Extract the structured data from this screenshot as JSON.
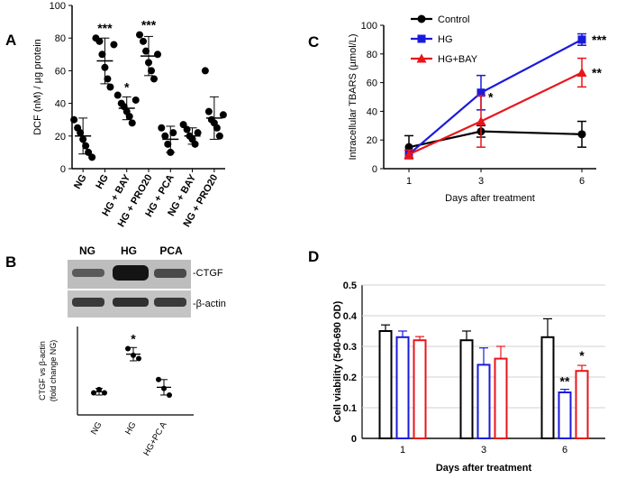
{
  "chart_data": [
    {
      "panel": "A",
      "type": "scatter",
      "title": "",
      "ylabel": "DCF (nM) / µg protein",
      "ylim": [
        0,
        100
      ],
      "yticks": [
        0,
        20,
        40,
        60,
        80,
        100
      ],
      "categories": [
        "NG",
        "HG",
        "HG + BAY",
        "HG + PRO20",
        "HG + PCA",
        "NG + BAY",
        "NG + PRO20"
      ],
      "means": [
        20,
        66,
        37,
        69,
        18,
        20,
        31
      ],
      "sd": [
        11,
        14,
        7,
        12,
        8,
        5,
        13
      ],
      "points": [
        [
          30,
          25,
          22,
          18,
          14,
          10,
          7
        ],
        [
          80,
          78,
          70,
          62,
          55,
          50,
          76
        ],
        [
          45,
          40,
          38,
          35,
          32,
          28,
          42
        ],
        [
          82,
          78,
          72,
          65,
          60,
          55,
          70
        ],
        [
          25,
          20,
          15,
          10,
          22
        ],
        [
          27,
          24,
          20,
          18,
          15,
          22
        ],
        [
          60,
          35,
          30,
          28,
          25,
          20,
          33
        ]
      ],
      "annotations": [
        "***",
        "*",
        "***"
      ]
    },
    {
      "panel": "C",
      "type": "line",
      "title": "",
      "xlabel": "Days after treatment",
      "ylabel": "Intracellular TBARS (µmol/L)",
      "x": [
        1,
        3,
        6
      ],
      "xticks": [
        "1",
        "3",
        "6"
      ],
      "ylim": [
        0,
        100
      ],
      "yticks": [
        0,
        20,
        40,
        60,
        80,
        100
      ],
      "series": [
        {
          "name": "Control",
          "color": "#000000",
          "marker": "circle",
          "values": [
            15,
            26,
            24
          ],
          "err": [
            8,
            4,
            9
          ]
        },
        {
          "name": "HG",
          "color": "#1a1adc",
          "marker": "square",
          "values": [
            10,
            53,
            90
          ],
          "err": [
            3,
            12,
            4
          ]
        },
        {
          "name": "HG+BAY",
          "color": "#e8151b",
          "marker": "triangle",
          "values": [
            10,
            33,
            67
          ],
          "err": [
            3,
            18,
            10
          ]
        }
      ],
      "annotations": [
        "*",
        "***",
        "**"
      ]
    },
    {
      "panel": "B",
      "type": "scatter",
      "title": "",
      "ylabel_line1": "CTGF vs β-actin",
      "ylabel_line2": "(fold change NG)",
      "ylim": [
        0,
        4
      ],
      "categories": [
        "NG",
        "HG",
        "HG+PC A"
      ],
      "means": [
        1.05,
        2.75,
        1.25
      ],
      "sd": [
        0.15,
        0.3,
        0.35
      ],
      "points": [
        [
          1.0,
          1.15,
          1.0
        ],
        [
          3.0,
          2.7,
          2.55
        ],
        [
          1.6,
          1.2,
          0.9
        ]
      ],
      "annotations": [
        "*"
      ]
    },
    {
      "panel": "D",
      "type": "bar",
      "title": "",
      "xlabel": "Days after treatment",
      "ylabel": "Cell viability (540-690 OD)",
      "categories": [
        "1",
        "3",
        "6"
      ],
      "ylim": [
        0,
        0.5
      ],
      "yticks": [
        "0",
        "0.1",
        "0.2",
        "0.3",
        "0.4",
        "0.5"
      ],
      "series": [
        {
          "name": "Control",
          "color": "#000000",
          "values": [
            0.35,
            0.32,
            0.33
          ],
          "err": [
            0.02,
            0.03,
            0.06
          ]
        },
        {
          "name": "HG",
          "color": "#1a1adc",
          "values": [
            0.33,
            0.24,
            0.15
          ],
          "err": [
            0.02,
            0.055,
            0.01
          ]
        },
        {
          "name": "HG+BAY",
          "color": "#e8151b",
          "values": [
            0.32,
            0.26,
            0.22
          ],
          "err": [
            0.012,
            0.04,
            0.018
          ]
        }
      ],
      "annotations": [
        "**",
        "*"
      ]
    }
  ],
  "labels": {
    "panel_a": "A",
    "panel_b": "B",
    "panel_c": "C",
    "panel_d": "D"
  },
  "blot": {
    "lanes": [
      "NG",
      "HG",
      "PCA"
    ],
    "bands": [
      "-CTGF",
      "-β-actin"
    ]
  }
}
